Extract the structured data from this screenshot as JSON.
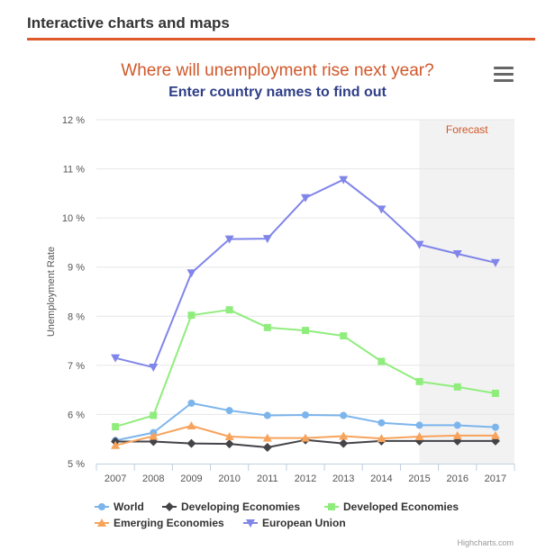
{
  "header": {
    "title": "Interactive charts and maps"
  },
  "menu": {
    "icon": "hamburger-menu-icon"
  },
  "credit": "Highcharts.com",
  "colors": {
    "accent": "#e0592a",
    "title": "#d0582a",
    "subtitle": "#2f3e87",
    "forecast_band": "#f2f2f2"
  },
  "chart_data": {
    "type": "line",
    "title": "Where will unemployment rise next year?",
    "subtitle": "Enter country names to find out",
    "xlabel": "",
    "ylabel": "Unemployment Rate",
    "categories": [
      "2007",
      "2008",
      "2009",
      "2010",
      "2011",
      "2012",
      "2013",
      "2014",
      "2015",
      "2016",
      "2017"
    ],
    "ylim": [
      5,
      12
    ],
    "yticks": [
      5,
      6,
      7,
      8,
      9,
      10,
      11,
      12
    ],
    "ytick_suffix": " %",
    "grid": true,
    "legend_position": "bottom",
    "plot_band": {
      "label": "Forecast",
      "from_category": "2015",
      "to_category": "2017"
    },
    "series": [
      {
        "name": "World",
        "color": "#7cb5ec",
        "marker": "circle",
        "values": [
          5.47,
          5.63,
          6.23,
          6.08,
          5.98,
          5.99,
          5.98,
          5.83,
          5.78,
          5.78,
          5.74
        ]
      },
      {
        "name": "Developing Economies",
        "color": "#434348",
        "marker": "diamond",
        "values": [
          5.45,
          5.45,
          5.41,
          5.4,
          5.33,
          5.48,
          5.41,
          5.46,
          5.46,
          5.46,
          5.46
        ]
      },
      {
        "name": "Developed Economies",
        "color": "#90ed7d",
        "marker": "square",
        "values": [
          5.75,
          5.98,
          8.02,
          8.13,
          7.77,
          7.71,
          7.6,
          7.08,
          6.67,
          6.56,
          6.43
        ]
      },
      {
        "name": "Emerging Economies",
        "color": "#f7a35c",
        "marker": "triangle",
        "values": [
          5.37,
          5.56,
          5.77,
          5.55,
          5.52,
          5.52,
          5.56,
          5.51,
          5.55,
          5.57,
          5.57
        ]
      },
      {
        "name": "European Union",
        "color": "#8085e9",
        "marker": "triangle-down",
        "values": [
          7.15,
          6.96,
          8.88,
          9.57,
          9.58,
          10.41,
          10.78,
          10.18,
          9.46,
          9.27,
          9.09
        ]
      }
    ]
  }
}
